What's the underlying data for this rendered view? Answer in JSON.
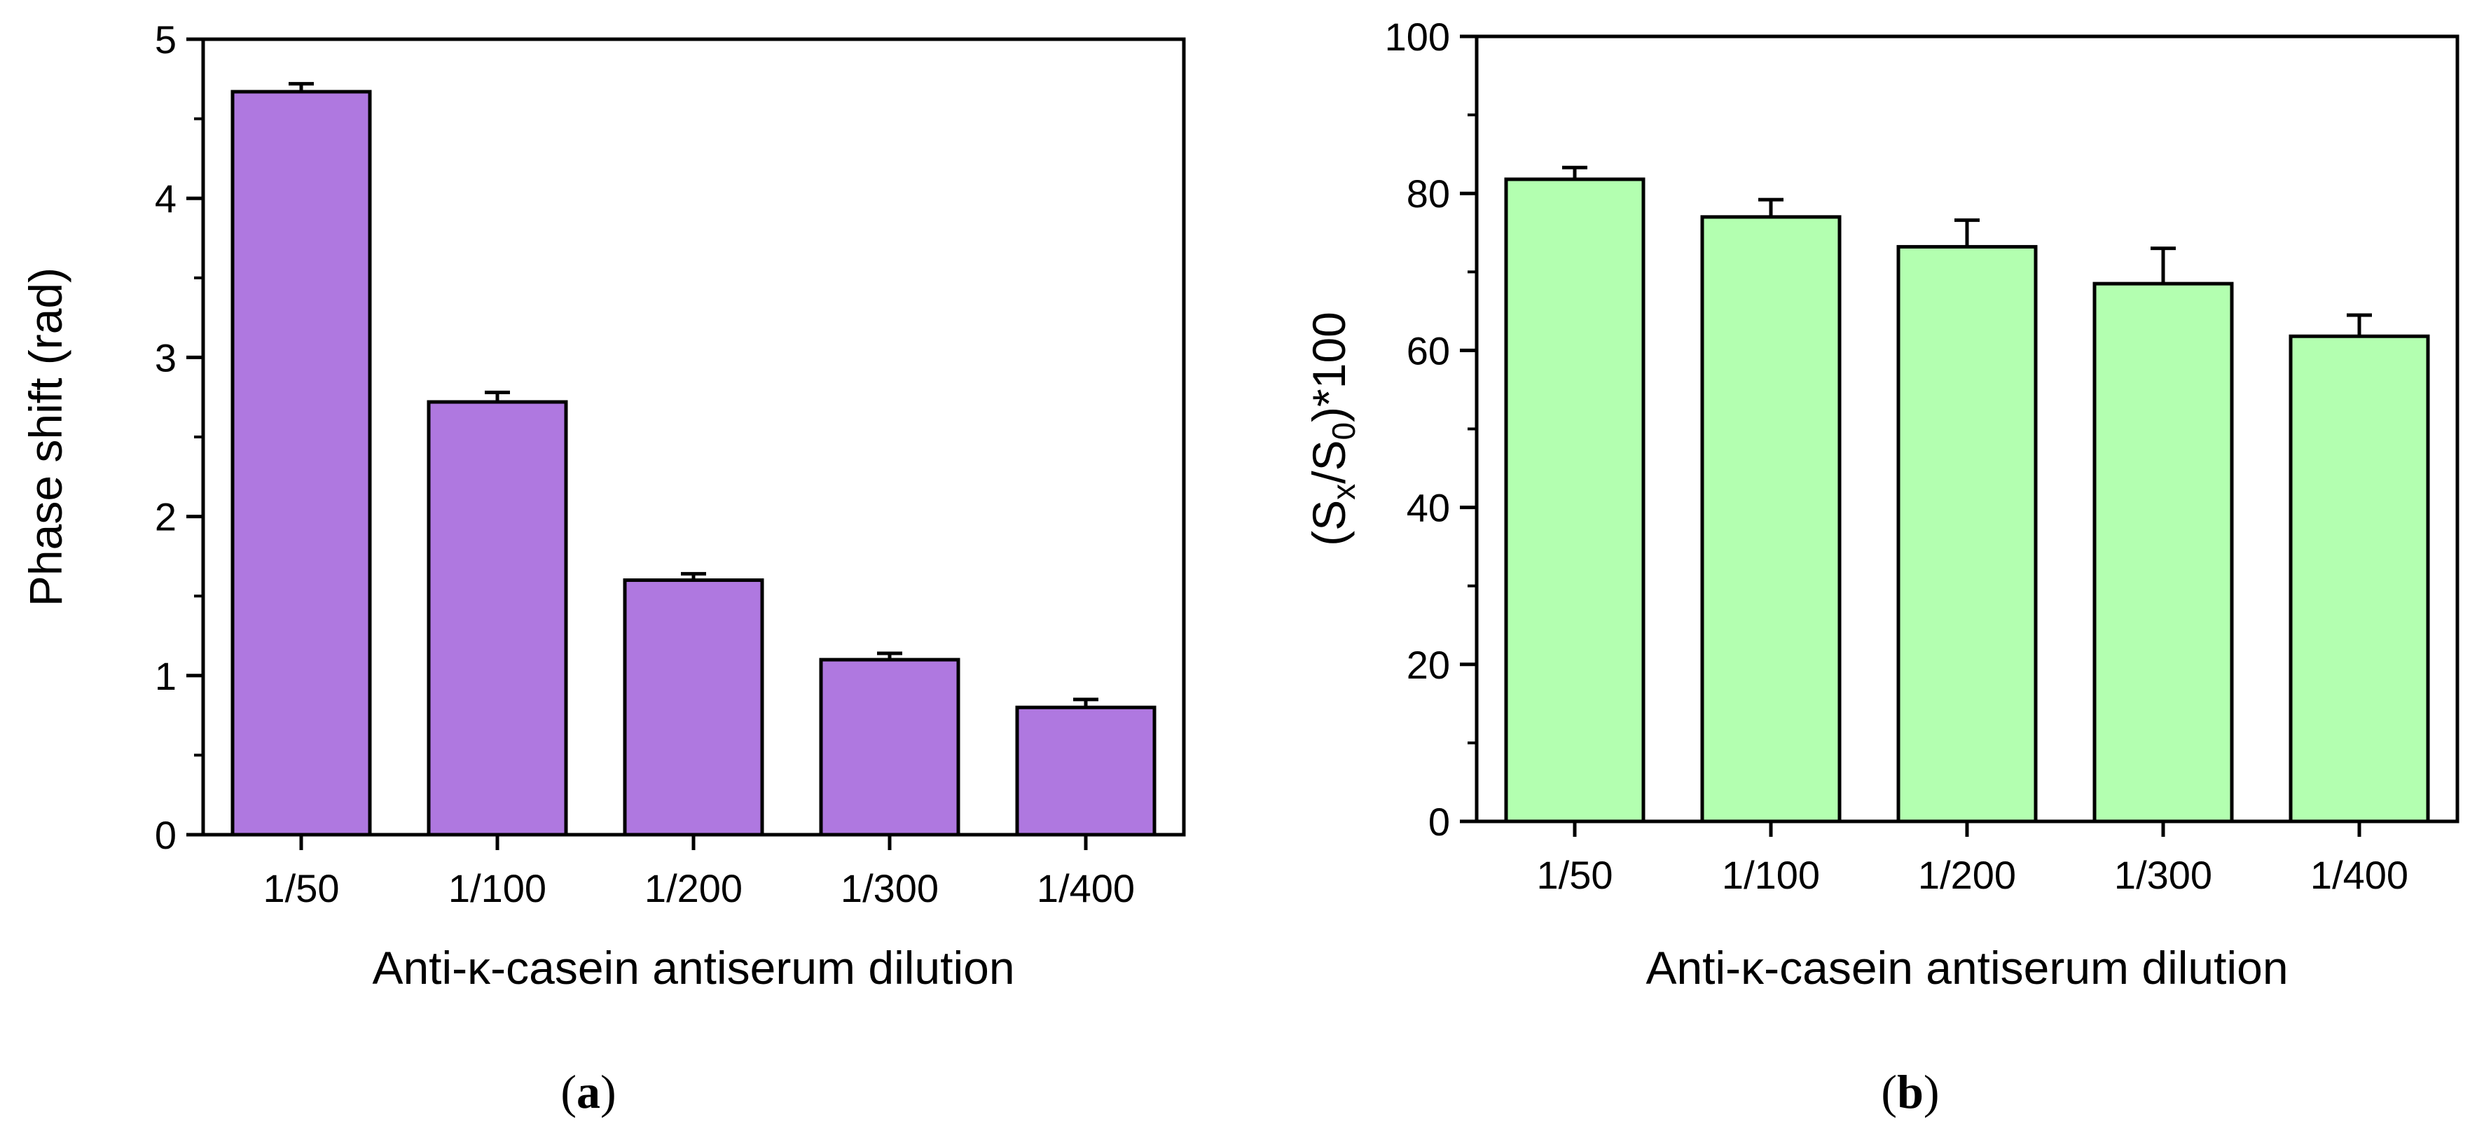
{
  "chart_data": [
    {
      "panel": "(a)",
      "panel_letter": "a",
      "type": "bar",
      "categories": [
        "1/50",
        "1/100",
        "1/200",
        "1/300",
        "1/400"
      ],
      "values": [
        4.67,
        2.72,
        1.6,
        1.1,
        0.8
      ],
      "errors": [
        0.05,
        0.06,
        0.04,
        0.04,
        0.05
      ],
      "xlabel": "Anti-κ-casein antiserum dilution",
      "ylabel": "Phase shift (rad)",
      "ylim": [
        0,
        5
      ],
      "yticks": [
        "0",
        "1",
        "2",
        "3",
        "4",
        "5"
      ],
      "bar_color": "#AF78E0",
      "grid": false
    },
    {
      "panel": "(b)",
      "panel_letter": "b",
      "type": "bar",
      "categories": [
        "1/50",
        "1/100",
        "1/200",
        "1/300",
        "1/400"
      ],
      "values": [
        81.8,
        77.0,
        73.2,
        68.5,
        61.8
      ],
      "errors": [
        1.5,
        2.2,
        3.4,
        4.5,
        2.7
      ],
      "xlabel": "Anti-κ-casein antiserum dilution",
      "ylabel": "(Sx/S0)*100",
      "ylabel_parts": {
        "open": "(S",
        "sub1": "x",
        "mid": "/S",
        "sub2": "0",
        "close": ")*100"
      },
      "ylim": [
        0,
        100
      ],
      "yticks": [
        "0",
        "20",
        "40",
        "60",
        "80",
        "100"
      ],
      "bar_color": "#B3FFB0",
      "grid": false
    }
  ]
}
